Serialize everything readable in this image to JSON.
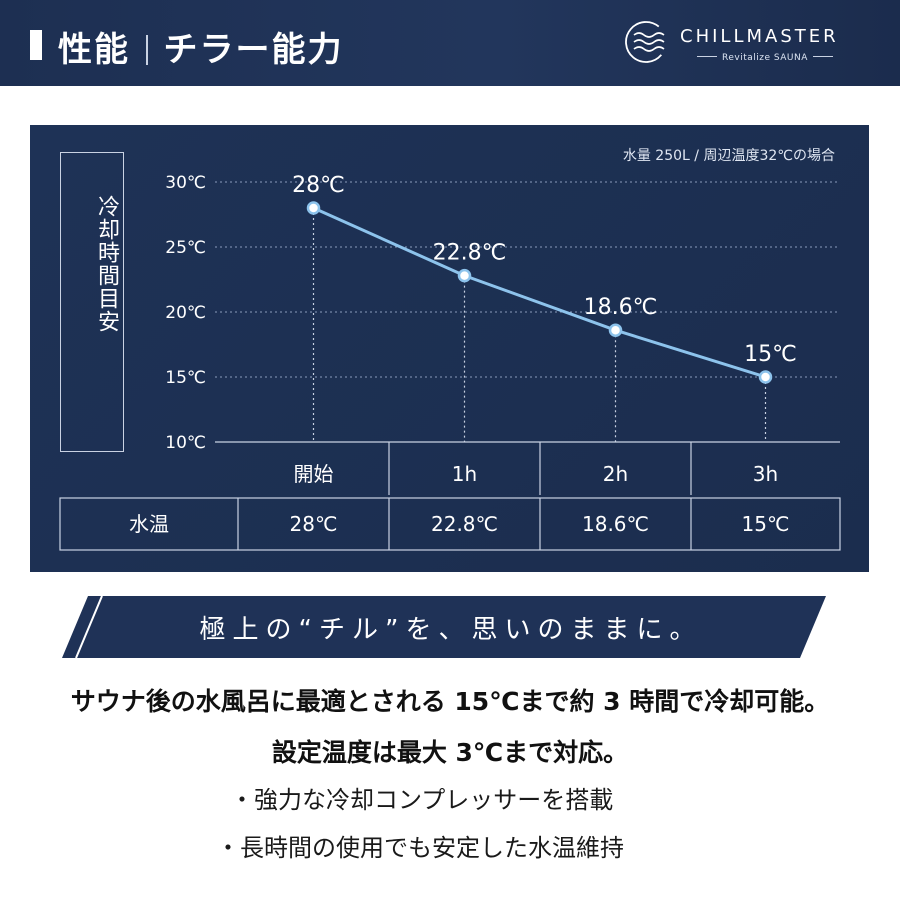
{
  "header": {
    "title_left": "性能",
    "title_right": "チラー能力",
    "brand_name": "CHILLMASTER",
    "brand_tagline": "Revitalize SAUNA"
  },
  "colors": {
    "navy": "#1d2f52",
    "line": "#8dc3ec",
    "text_light": "#ffffff"
  },
  "chart_data": {
    "type": "line",
    "ylabel": "冷却時間目安",
    "note": "水量 250L / 周辺温度32℃の場合",
    "categories": [
      "開始",
      "1h",
      "2h",
      "3h"
    ],
    "values": [
      28,
      22.8,
      18.6,
      15
    ],
    "point_labels": [
      "28℃",
      "22.8℃",
      "18.6℃",
      "15℃"
    ],
    "y_ticks": [
      "30℃",
      "25℃",
      "20℃",
      "15℃",
      "10℃"
    ],
    "y_tick_values": [
      30,
      25,
      20,
      15,
      10
    ],
    "ylim": [
      10,
      30
    ],
    "grid": true,
    "table": {
      "row_label": "水温",
      "cells": [
        "28℃",
        "22.8℃",
        "18.6℃",
        "15℃"
      ]
    }
  },
  "banner": {
    "text": "極上の“チル”を、思いのままに。"
  },
  "body": {
    "line1": "サウナ後の水風呂に最適とされる 15℃まで約 3 時間で冷却可能。",
    "line2": "設定温度は最大 3℃まで対応。",
    "bullets": [
      "・強力な冷却コンプレッサーを搭載",
      "・長時間の使用でも安定した水温維持"
    ]
  }
}
